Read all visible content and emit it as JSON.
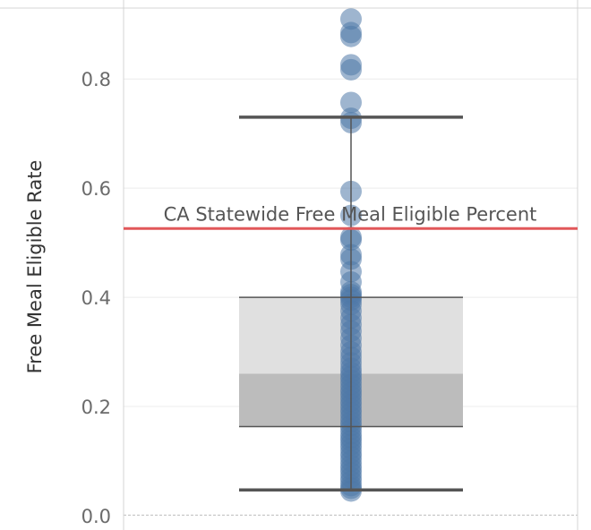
{
  "chart_data": {
    "type": "scatter",
    "subtype": "box-plot-with-jittered-points",
    "ylabel": "Free Meal Eligible Rate",
    "ylim": [
      -0.01,
      0.93
    ],
    "yticks": [
      0.0,
      0.2,
      0.4,
      0.6,
      0.8
    ],
    "ytick_labels": [
      "0.0",
      "0.2",
      "0.4",
      "0.6",
      "0.8"
    ],
    "grid": true,
    "box": {
      "whisker_low": 0.047,
      "q1": 0.163,
      "median": 0.26,
      "q3": 0.4,
      "whisker_high": 0.73
    },
    "reference_line": {
      "label": "CA Statewide Free Meal Eligible Percent",
      "value": 0.526,
      "color": "#e15759"
    },
    "point_color": "#4e79a7",
    "values": [
      0.91,
      0.885,
      0.878,
      0.826,
      0.817,
      0.757,
      0.728,
      0.72,
      0.594,
      0.55,
      0.51,
      0.505,
      0.478,
      0.47,
      0.447,
      0.428,
      0.41,
      0.405,
      0.4,
      0.395,
      0.387,
      0.375,
      0.362,
      0.35,
      0.338,
      0.325,
      0.312,
      0.3,
      0.29,
      0.28,
      0.27,
      0.262,
      0.255,
      0.248,
      0.24,
      0.232,
      0.225,
      0.218,
      0.21,
      0.203,
      0.195,
      0.188,
      0.18,
      0.172,
      0.165,
      0.158,
      0.15,
      0.143,
      0.137,
      0.13,
      0.123,
      0.115,
      0.108,
      0.1,
      0.092,
      0.085,
      0.078,
      0.07,
      0.063,
      0.055,
      0.05,
      0.045
    ]
  }
}
